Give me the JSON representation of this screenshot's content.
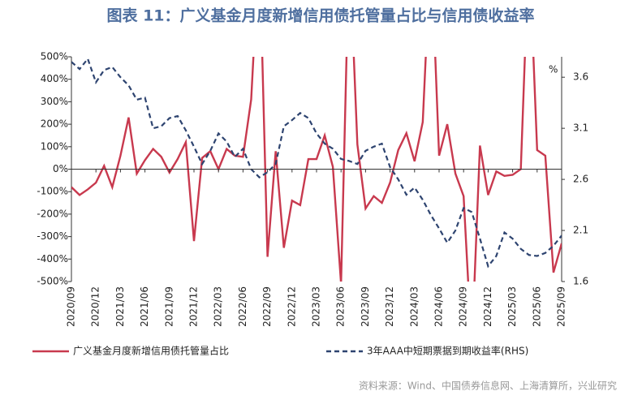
{
  "chart_data": {
    "type": "line",
    "title": "图表 11：广义基金月度新增信用债托管量占比与信用债收益率",
    "source": "资料来源：Wind、中国债券信息网、上海清算所，兴业研究",
    "y2_unit_label": "%",
    "categories": [
      "2020/09",
      null,
      null,
      "2020/12",
      null,
      null,
      "2021/03",
      null,
      null,
      "2021/06",
      null,
      null,
      "2021/09",
      null,
      null,
      "2021/12",
      null,
      null,
      "2022/03",
      null,
      null,
      "2022/06",
      null,
      null,
      "2022/09",
      null,
      null,
      "2022/12",
      null,
      null,
      "2023/03",
      null,
      null,
      "2023/06",
      null,
      null,
      "2023/09",
      null,
      null,
      "2023/12",
      null,
      null,
      "2024/03",
      null,
      null,
      "2024/06",
      null,
      null,
      "2024/09",
      null,
      null,
      "2024/12",
      null,
      null,
      "2025/03",
      null,
      null,
      "2025/06",
      null,
      null,
      "2025/09"
    ],
    "ylim": [
      -500,
      500
    ],
    "yticks": [
      {
        "value": 500,
        "label": "500%"
      },
      {
        "value": 400,
        "label": "400%"
      },
      {
        "value": 300,
        "label": "300%"
      },
      {
        "value": 200,
        "label": "200%"
      },
      {
        "value": 100,
        "label": "100%"
      },
      {
        "value": 0,
        "label": "0%"
      },
      {
        "value": -100,
        "label": "-100%"
      },
      {
        "value": -200,
        "label": "-200%"
      },
      {
        "value": -300,
        "label": "-300%"
      },
      {
        "value": -400,
        "label": "-400%"
      },
      {
        "value": -500,
        "label": "-500%"
      }
    ],
    "y2lim": [
      1.6,
      3.8
    ],
    "y2ticks": [
      3.6,
      3.1,
      2.6,
      2.1,
      1.6
    ],
    "series": [
      {
        "name": "广义基金月度新增信用债托管量占比",
        "color": "#c8394e",
        "dashed": false,
        "values": [
          -80,
          -115,
          -90,
          -60,
          15,
          -80,
          60,
          230,
          -20,
          40,
          90,
          55,
          -15,
          45,
          120,
          -320,
          50,
          80,
          0,
          90,
          60,
          55,
          310,
          1000,
          -390,
          80,
          -350,
          -140,
          -160,
          45,
          45,
          150,
          10,
          -510,
          1000,
          110,
          -175,
          -120,
          -150,
          -60,
          85,
          160,
          35,
          210,
          1000,
          60,
          200,
          -20,
          -120,
          -800,
          105,
          -115,
          -10,
          -30,
          -25,
          0,
          1000,
          85,
          60,
          -460,
          -330
        ]
      },
      {
        "name": "3年AAA中短期票据到期收益率(RHS)",
        "color": "#2e4470",
        "dashed": true,
        "axis": "y2",
        "values": [
          3.75,
          3.68,
          3.78,
          3.55,
          3.67,
          3.7,
          3.6,
          3.52,
          3.38,
          3.4,
          3.1,
          3.12,
          3.2,
          3.22,
          3.08,
          2.92,
          2.75,
          2.88,
          3.05,
          2.97,
          2.82,
          2.9,
          2.7,
          2.62,
          2.67,
          2.75,
          3.12,
          3.18,
          3.25,
          3.2,
          3.05,
          2.95,
          2.9,
          2.8,
          2.78,
          2.75,
          2.88,
          2.92,
          2.95,
          2.72,
          2.6,
          2.45,
          2.52,
          2.4,
          2.25,
          2.12,
          1.98,
          2.1,
          2.32,
          2.28,
          2.02,
          1.75,
          1.85,
          2.08,
          2.02,
          1.92,
          1.86,
          1.85,
          1.88,
          1.95,
          2.05
        ]
      }
    ]
  }
}
